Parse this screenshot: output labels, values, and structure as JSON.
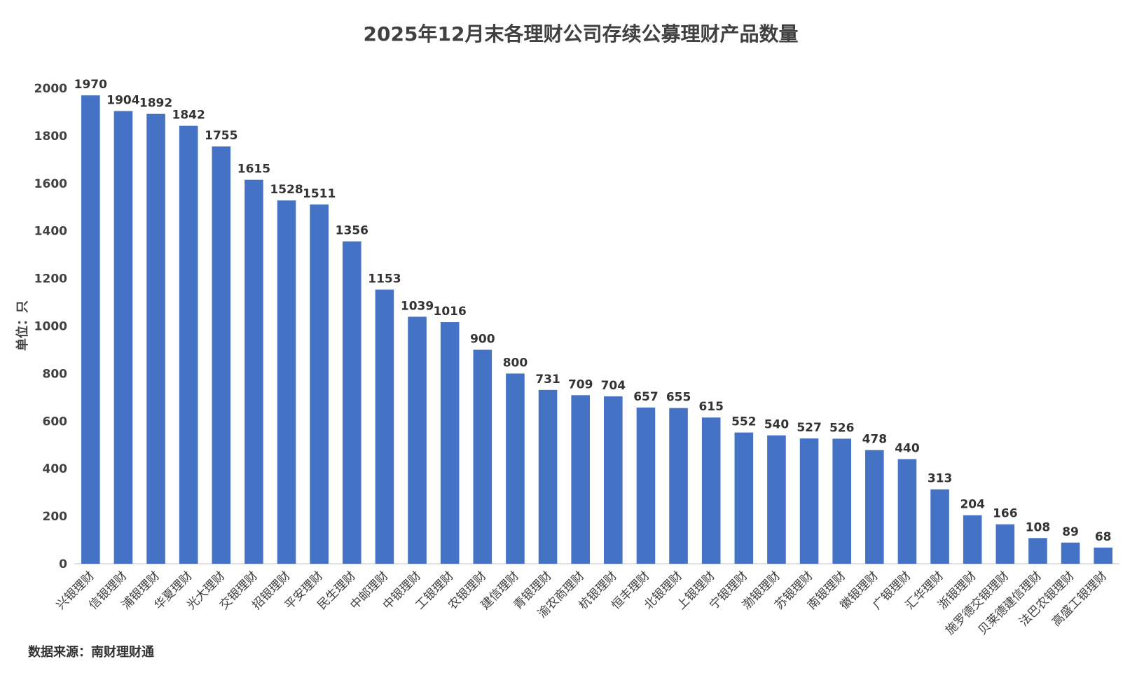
{
  "chart_data": {
    "type": "bar",
    "title": "2025年12月末各理财公司存续公募理财产品数量",
    "ylabel": "单位：只",
    "xlabel": "",
    "source_note": "数据来源：南财理财通",
    "ylim": [
      0,
      2000
    ],
    "yticks": [
      0,
      200,
      400,
      600,
      800,
      1000,
      1200,
      1400,
      1600,
      1800,
      2000
    ],
    "legend": "none",
    "grid": false,
    "bar_color": "#4472C4",
    "categories": [
      "兴银理财",
      "信银理财",
      "浦银理财",
      "华夏理财",
      "光大理财",
      "交银理财",
      "招银理财",
      "平安理财",
      "民生理财",
      "中邮理财",
      "中银理财",
      "工银理财",
      "农银理财",
      "建信理财",
      "青银理财",
      "渝农商理财",
      "杭银理财",
      "恒丰理财",
      "北银理财",
      "上银理财",
      "宁银理财",
      "渤银理财",
      "苏银理财",
      "南银理财",
      "徽银理财",
      "广银理财",
      "汇华理财",
      "浙银理财",
      "施罗德交银理财",
      "贝莱德建信理财",
      "法巴农银理财",
      "高盛工银理财"
    ],
    "values": [
      1970,
      1904,
      1892,
      1842,
      1755,
      1615,
      1528,
      1511,
      1356,
      1153,
      1039,
      1016,
      900,
      800,
      731,
      709,
      704,
      657,
      655,
      615,
      552,
      540,
      527,
      526,
      478,
      440,
      313,
      204,
      166,
      108,
      89,
      68
    ]
  }
}
